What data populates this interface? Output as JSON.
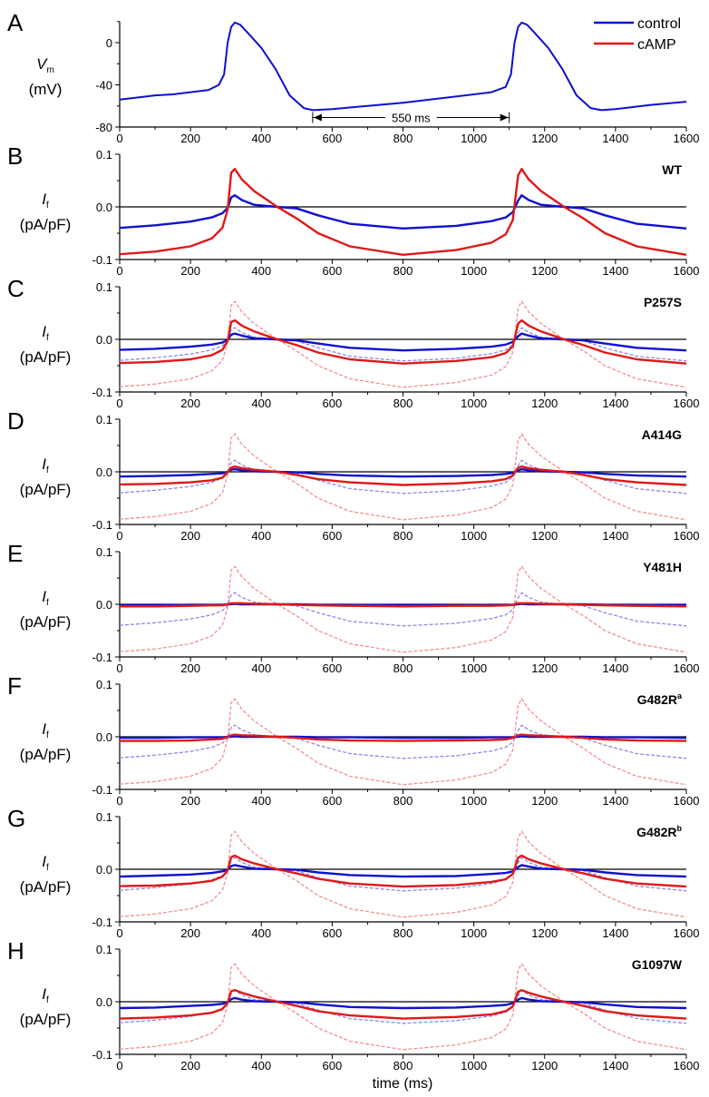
{
  "colors": {
    "control": "#1010d0",
    "camp": "#e01818",
    "control_ref": "#8a8ae8",
    "camp_ref": "#f09090",
    "axis": "#000000"
  },
  "legend": {
    "control": "control",
    "camp": "cAMP"
  },
  "xlabel": "time (ms)",
  "chart_data": {
    "type": "line",
    "xlim": [
      0,
      1600
    ],
    "xticks": [
      0,
      200,
      400,
      600,
      800,
      1000,
      1200,
      1400,
      1600
    ],
    "xlabel": "time (ms)",
    "legend": [
      "control",
      "cAMP"
    ],
    "legend_position": "top-right",
    "panelA": {
      "letter": "A",
      "ylabel_main": "V",
      "ylabel_sub": "m",
      "ylabel_units": "(mV)",
      "ylim": [
        -80,
        20
      ],
      "yticks": [
        0,
        -40,
        -80
      ],
      "annotation": {
        "text": "550 ms",
        "from": 545,
        "to": 1100,
        "y": -71
      },
      "x": [
        0,
        50,
        100,
        150,
        200,
        250,
        280,
        295,
        305,
        315,
        325,
        340,
        360,
        400,
        440,
        480,
        520,
        545,
        600,
        700,
        800,
        900,
        1000,
        1050,
        1090,
        1105,
        1115,
        1125,
        1135,
        1150,
        1170,
        1210,
        1250,
        1290,
        1330,
        1360,
        1400,
        1500,
        1600
      ],
      "control": [
        -54,
        -52,
        -50,
        -49,
        -47,
        -45,
        -40,
        -30,
        0,
        15,
        19,
        17,
        10,
        -5,
        -25,
        -50,
        -62,
        -64,
        -63,
        -60,
        -57,
        -53,
        -49,
        -47,
        -42,
        -30,
        0,
        15,
        19,
        17,
        10,
        -5,
        -25,
        -50,
        -62,
        -64,
        -63,
        -59,
        -56
      ]
    },
    "current_x": [
      0,
      100,
      200,
      260,
      290,
      305,
      315,
      325,
      345,
      380,
      445,
      500,
      560,
      650,
      800,
      950,
      1050,
      1090,
      1110,
      1125,
      1135,
      1155,
      1190,
      1255,
      1310,
      1370,
      1460,
      1600
    ],
    "current_ylim": [
      -0.1,
      0.1
    ],
    "current_yticks": [
      "0.1",
      "0.0",
      "-0.1"
    ],
    "current_ylabel_main": "I",
    "current_ylabel_sub": "f",
    "current_ylabel_units": "(pA/pF)",
    "panels": [
      {
        "letter": "B",
        "name": "WT",
        "control": [
          -0.04,
          -0.035,
          -0.028,
          -0.02,
          -0.012,
          -0.002,
          0.018,
          0.022,
          0.013,
          0.004,
          0.0,
          -0.003,
          -0.016,
          -0.032,
          -0.041,
          -0.036,
          -0.027,
          -0.02,
          -0.01,
          0.012,
          0.022,
          0.013,
          0.004,
          0.0,
          -0.003,
          -0.016,
          -0.032,
          -0.041
        ],
        "camp": [
          -0.09,
          -0.085,
          -0.075,
          -0.06,
          -0.04,
          -0.005,
          0.065,
          0.072,
          0.052,
          0.03,
          0.0,
          -0.022,
          -0.05,
          -0.075,
          -0.091,
          -0.082,
          -0.068,
          -0.052,
          -0.025,
          0.06,
          0.072,
          0.052,
          0.03,
          0.0,
          -0.022,
          -0.05,
          -0.075,
          -0.091
        ]
      },
      {
        "letter": "C",
        "name": "P257S",
        "sup": "",
        "control": [
          -0.02,
          -0.018,
          -0.014,
          -0.01,
          -0.006,
          -0.001,
          0.009,
          0.011,
          0.007,
          0.002,
          0.0,
          -0.002,
          -0.008,
          -0.016,
          -0.021,
          -0.018,
          -0.014,
          -0.01,
          -0.005,
          0.006,
          0.011,
          0.007,
          0.002,
          0.0,
          -0.002,
          -0.008,
          -0.016,
          -0.021
        ],
        "camp": [
          -0.045,
          -0.043,
          -0.038,
          -0.03,
          -0.02,
          -0.003,
          0.033,
          0.036,
          0.026,
          0.015,
          0.0,
          -0.011,
          -0.025,
          -0.038,
          -0.046,
          -0.041,
          -0.034,
          -0.026,
          -0.013,
          0.03,
          0.036,
          0.026,
          0.015,
          0.0,
          -0.011,
          -0.025,
          -0.038,
          -0.046
        ]
      },
      {
        "letter": "D",
        "name": "A414G",
        "sup": "",
        "control": [
          -0.009,
          -0.008,
          -0.006,
          -0.004,
          -0.003,
          0.0,
          0.004,
          0.005,
          0.003,
          0.001,
          0.0,
          -0.001,
          -0.004,
          -0.007,
          -0.009,
          -0.008,
          -0.006,
          -0.004,
          -0.002,
          0.003,
          0.005,
          0.003,
          0.001,
          0.0,
          -0.001,
          -0.004,
          -0.007,
          -0.009
        ],
        "camp": [
          -0.024,
          -0.023,
          -0.02,
          -0.016,
          -0.011,
          -0.001,
          0.008,
          0.01,
          0.007,
          0.004,
          0.0,
          -0.006,
          -0.014,
          -0.02,
          -0.025,
          -0.022,
          -0.018,
          -0.014,
          -0.007,
          0.008,
          0.01,
          0.007,
          0.004,
          0.0,
          -0.006,
          -0.014,
          -0.02,
          -0.025
        ]
      },
      {
        "letter": "E",
        "name": "Y481H",
        "sup": "",
        "control": [
          -0.002,
          -0.002,
          -0.001,
          -0.001,
          -0.001,
          0,
          0,
          0.001,
          0,
          0,
          0,
          0,
          -0.001,
          -0.001,
          -0.002,
          -0.002,
          -0.001,
          -0.001,
          -0.001,
          0,
          0.001,
          0,
          0,
          0,
          0,
          -0.001,
          -0.001,
          -0.002
        ],
        "camp": [
          -0.004,
          -0.004,
          -0.003,
          -0.002,
          -0.002,
          0,
          0.002,
          0.002,
          0.002,
          0.001,
          0,
          -0.001,
          -0.002,
          -0.003,
          -0.004,
          -0.003,
          -0.003,
          -0.002,
          -0.001,
          0.002,
          0.002,
          0.002,
          0.001,
          0,
          -0.001,
          -0.002,
          -0.003,
          -0.004
        ]
      },
      {
        "letter": "F",
        "name": "G482R",
        "sup": "a",
        "control": [
          -0.002,
          -0.002,
          -0.001,
          -0.001,
          -0.001,
          0,
          0,
          0.001,
          0,
          0,
          0,
          0,
          -0.001,
          -0.001,
          -0.002,
          -0.002,
          -0.001,
          -0.001,
          -0.001,
          0,
          0.001,
          0,
          0,
          0,
          0,
          -0.001,
          -0.001,
          -0.002
        ],
        "camp": [
          -0.008,
          -0.008,
          -0.007,
          -0.005,
          -0.004,
          0,
          0.003,
          0.004,
          0.003,
          0.002,
          0,
          -0.002,
          -0.005,
          -0.007,
          -0.008,
          -0.007,
          -0.006,
          -0.005,
          -0.002,
          0.003,
          0.004,
          0.003,
          0.002,
          0,
          -0.002,
          -0.005,
          -0.007,
          -0.008
        ]
      },
      {
        "letter": "G",
        "name": "G482R",
        "sup": "b",
        "control": [
          -0.014,
          -0.012,
          -0.01,
          -0.007,
          -0.004,
          -0.001,
          0.006,
          0.008,
          0.005,
          0.001,
          0,
          -0.001,
          -0.006,
          -0.011,
          -0.014,
          -0.013,
          -0.009,
          -0.007,
          -0.004,
          0.004,
          0.008,
          0.005,
          0.001,
          0,
          -0.001,
          -0.006,
          -0.011,
          -0.014
        ],
        "camp": [
          -0.032,
          -0.031,
          -0.027,
          -0.022,
          -0.014,
          -0.002,
          0.023,
          0.026,
          0.019,
          0.011,
          0,
          -0.008,
          -0.018,
          -0.027,
          -0.033,
          -0.03,
          -0.024,
          -0.019,
          -0.009,
          0.022,
          0.026,
          0.019,
          0.011,
          0,
          -0.008,
          -0.018,
          -0.027,
          -0.033
        ]
      },
      {
        "letter": "H",
        "name": "G1097W",
        "sup": "",
        "control": [
          -0.012,
          -0.011,
          -0.008,
          -0.006,
          -0.004,
          -0.001,
          0.005,
          0.007,
          0.004,
          0.001,
          0,
          -0.001,
          -0.005,
          -0.01,
          -0.012,
          -0.011,
          -0.008,
          -0.006,
          -0.003,
          0.004,
          0.007,
          0.004,
          0.001,
          0,
          -0.001,
          -0.005,
          -0.01,
          -0.012
        ],
        "camp": [
          -0.032,
          -0.03,
          -0.026,
          -0.021,
          -0.014,
          -0.002,
          0.02,
          0.022,
          0.017,
          0.01,
          0,
          -0.008,
          -0.018,
          -0.026,
          -0.032,
          -0.029,
          -0.024,
          -0.018,
          -0.009,
          0.019,
          0.022,
          0.017,
          0.01,
          0,
          -0.008,
          -0.018,
          -0.026,
          -0.032
        ]
      }
    ]
  }
}
